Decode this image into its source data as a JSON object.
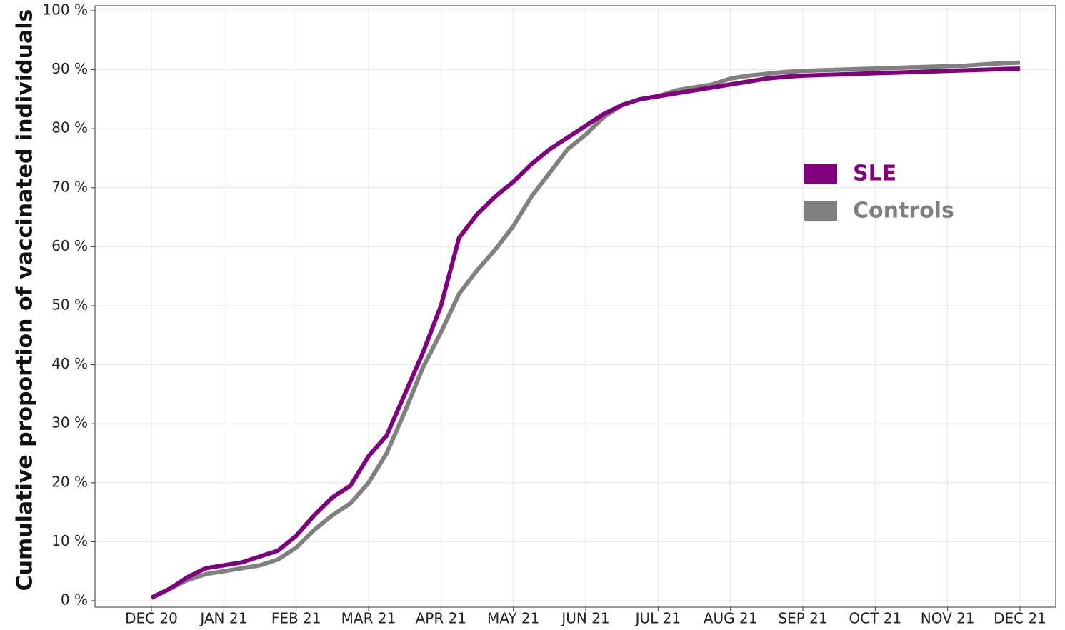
{
  "chart_data": {
    "type": "line",
    "y_label": "Cumulative proportion of vaccinated individuals",
    "categories": [
      "DEC 20",
      null,
      null,
      null,
      "JAN 21",
      null,
      null,
      null,
      "FEB 21",
      null,
      null,
      null,
      "MAR 21",
      null,
      null,
      null,
      "APR 21",
      null,
      null,
      null,
      "MAY 21",
      null,
      null,
      null,
      "JUN 21",
      null,
      null,
      null,
      "JUL 21",
      null,
      null,
      null,
      "AUG 21",
      null,
      null,
      null,
      "SEP 21",
      null,
      null,
      null,
      "OCT 21",
      null,
      null,
      null,
      "NOV 21",
      null,
      null,
      null,
      "DEC 21"
    ],
    "series": [
      {
        "name": "SLE",
        "color": "#800080",
        "values": [
          0.5,
          2,
          4,
          5.5,
          6,
          6.5,
          7.5,
          8.5,
          11,
          14.5,
          17.5,
          19.5,
          24.5,
          28,
          35,
          42,
          50,
          61.5,
          65.5,
          68.5,
          71,
          74,
          76.5,
          78.5,
          80.5,
          82.5,
          84,
          85,
          85.5,
          86,
          86.5,
          87,
          87.5,
          88,
          88.5,
          88.8,
          89,
          89.1,
          89.2,
          89.3,
          89.4,
          89.5,
          89.6,
          89.7,
          89.8,
          89.9,
          90,
          90.1,
          90.2
        ]
      },
      {
        "name": "Controls",
        "color": "#808080",
        "values": [
          0.5,
          2,
          3.5,
          4.5,
          5,
          5.5,
          6,
          7,
          9,
          12,
          14.5,
          16.5,
          20,
          25,
          32,
          39.5,
          45.5,
          52,
          56,
          59.5,
          63.5,
          68.5,
          72.5,
          76.5,
          79,
          82,
          84,
          85,
          85.5,
          86.5,
          87,
          87.5,
          88.5,
          89,
          89.3,
          89.6,
          89.8,
          89.9,
          90,
          90.1,
          90.2,
          90.3,
          90.4,
          90.5,
          90.6,
          90.7,
          90.9,
          91.1,
          91.2
        ]
      }
    ],
    "ylim": [
      0,
      100
    ],
    "yticks": [
      {
        "value": 0,
        "label": "0 %"
      },
      {
        "value": 10,
        "label": "10 %"
      },
      {
        "value": 20,
        "label": "20 %"
      },
      {
        "value": 30,
        "label": "30 %"
      },
      {
        "value": 40,
        "label": "40 %"
      },
      {
        "value": 50,
        "label": "50 %"
      },
      {
        "value": 60,
        "label": "60 %"
      },
      {
        "value": 70,
        "label": "70 %"
      },
      {
        "value": 80,
        "label": "80 %"
      },
      {
        "value": 90,
        "label": "90 %"
      },
      {
        "value": 100,
        "label": "100 %"
      }
    ],
    "grid": true,
    "legend": "right"
  }
}
